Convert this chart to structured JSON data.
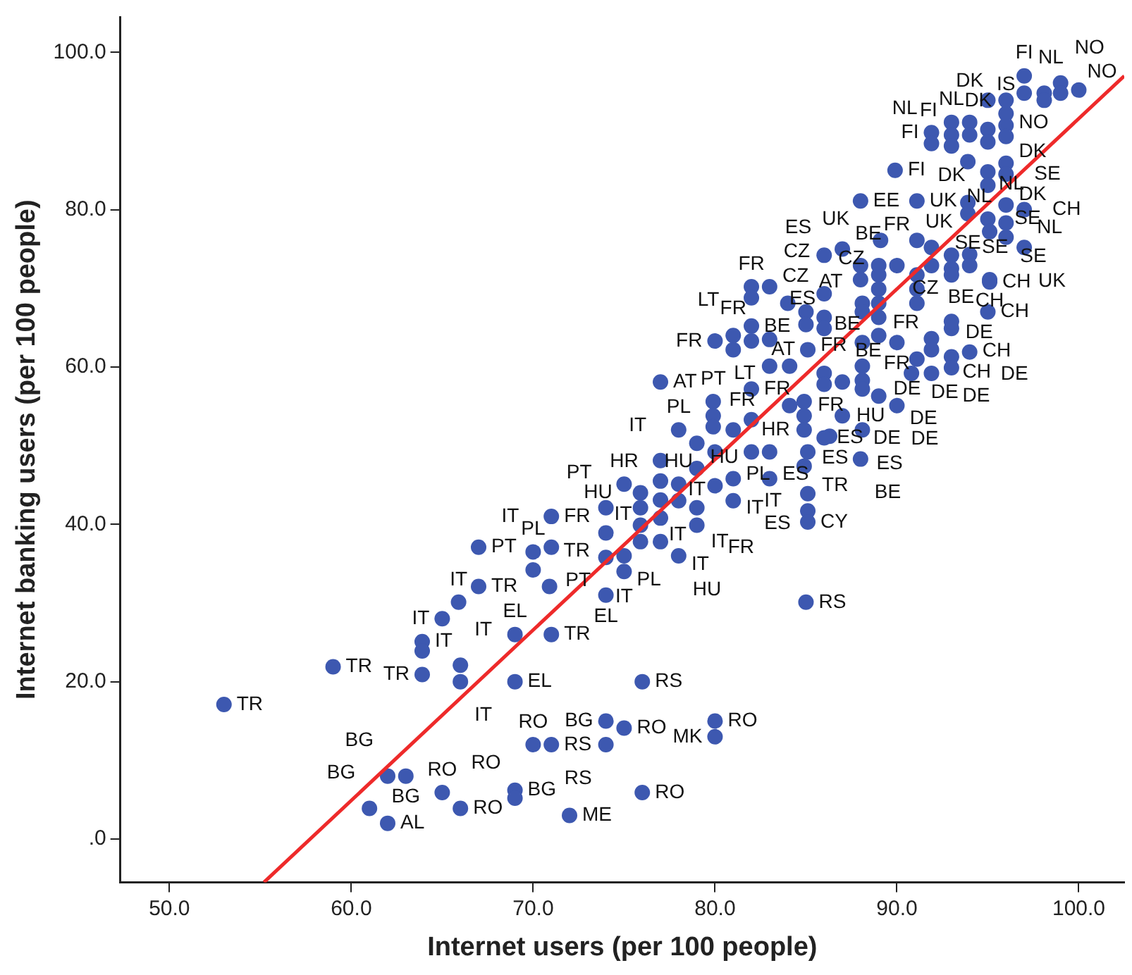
{
  "chart_data": {
    "type": "scatter",
    "xlabel": "Internet users (per 100 people)",
    "ylabel": "Internet banking users (per 100 people)",
    "xlim": [
      47.3,
      102.5
    ],
    "ylim": [
      -5.5,
      104.5
    ],
    "xticks": [
      {
        "value": 50,
        "label": "50.0"
      },
      {
        "value": 60,
        "label": "60.0"
      },
      {
        "value": 70,
        "label": "70.0"
      },
      {
        "value": 80,
        "label": "80.0"
      },
      {
        "value": 90,
        "label": "90.0"
      },
      {
        "value": 100,
        "label": "100.0"
      }
    ],
    "yticks": [
      {
        "value": 0,
        "label": ".0"
      },
      {
        "value": 20,
        "label": "20.0"
      },
      {
        "value": 40,
        "label": "40.0"
      },
      {
        "value": 60,
        "label": "60.0"
      },
      {
        "value": 80,
        "label": "80.0"
      },
      {
        "value": 100,
        "label": "100.0"
      }
    ],
    "grid": false,
    "legend": false,
    "marker": "circle",
    "series": [
      {
        "type": "scatter",
        "color": "#3d58b0",
        "x": [
          53.0,
          59.0,
          63.9,
          63.9,
          63.9,
          66.0,
          66.0,
          69.0,
          69.0,
          71.0,
          62.0,
          63.0,
          61.0,
          62.0,
          65.0,
          66.0,
          69.0,
          69.0,
          72.0,
          70.0,
          71.0,
          74.0,
          75.0,
          74.0,
          76.0,
          76.0,
          80.0,
          80.0,
          85.0,
          67.0,
          67.0,
          65.9,
          65.0,
          70.9,
          70.0,
          70.0,
          71.0,
          71.0,
          74.0,
          74.0,
          74.0,
          74.0,
          75.0,
          75.0,
          75.0,
          75.9,
          75.9,
          75.9,
          75.9,
          77.0,
          77.0,
          77.0,
          77.0,
          77.0,
          78.0,
          78.0,
          78.0,
          77.0,
          78.0,
          79.0,
          79.0,
          79.0,
          79.0,
          80.0,
          80.0,
          79.9,
          79.9,
          79.9,
          81.0,
          81.0,
          81.0,
          82.0,
          82.0,
          82.0,
          83.0,
          83.0,
          84.1,
          80.0,
          81.0,
          81.0,
          82.0,
          82.0,
          83.0,
          83.0,
          84.1,
          82.0,
          82.0,
          83.0,
          84.0,
          85.0,
          85.0,
          85.1,
          86.0,
          86.0,
          86.0,
          85.1,
          85.1,
          85.1,
          85.1,
          86.3,
          86.0,
          86.0,
          87.0,
          87.0,
          88.1,
          88.1,
          88.1,
          88.1,
          88.1,
          88.1,
          88.1,
          88.0,
          86.0,
          84.9,
          84.9,
          84.9,
          84.9,
          89.0,
          89.0,
          89.0,
          89.0,
          89.0,
          90.0,
          90.0,
          89.0,
          90.8,
          91.1,
          91.1,
          91.1,
          91.1,
          91.9,
          91.9,
          91.9,
          93.0,
          93.0,
          93.0,
          94.0,
          95.1,
          95.0,
          89.9,
          88.0,
          91.1,
          89.1,
          91.1,
          87.0,
          86.0,
          91.9,
          91.9,
          93.0,
          93.0,
          93.0,
          94.0,
          94.0,
          93.9,
          95.0,
          95.0,
          95.0,
          95.0,
          95.0,
          96.0,
          96.0,
          96.0,
          96.0,
          96.0,
          96.0,
          97.0,
          97.0,
          98.1,
          98.1,
          99.0,
          99.0,
          100.0,
          93.9,
          93.9,
          95.0,
          96.0,
          96.0,
          96.0,
          97.0,
          97.0,
          94.0,
          94.0,
          95.1,
          95.1,
          93.0,
          93.0,
          91.9,
          91.9,
          90.0,
          89.0,
          88.0,
          88.0,
          93.0,
          93.0
        ],
        "values": [
          17.1,
          21.9,
          20.9,
          25.1,
          23.9,
          22.1,
          20.0,
          26.0,
          20.0,
          26.0,
          8.0,
          8.0,
          3.9,
          2.0,
          5.9,
          3.9,
          6.2,
          5.2,
          3.0,
          12.0,
          12.0,
          15.0,
          14.1,
          12.0,
          20.0,
          5.9,
          15.0,
          13.0,
          30.1,
          37.1,
          32.1,
          30.1,
          28.0,
          32.1,
          36.5,
          34.2,
          41.0,
          37.1,
          42.1,
          38.9,
          35.8,
          31.0,
          45.1,
          36.0,
          34.0,
          44.0,
          42.1,
          39.9,
          37.8,
          48.1,
          45.5,
          43.1,
          40.8,
          37.8,
          45.1,
          43.0,
          36.0,
          58.1,
          52.0,
          50.3,
          47.1,
          42.1,
          39.9,
          49.2,
          44.9,
          55.6,
          53.8,
          52.4,
          52.0,
          45.8,
          43.0,
          57.2,
          53.3,
          49.2,
          49.2,
          45.8,
          55.1,
          63.3,
          64.0,
          62.2,
          65.2,
          63.3,
          63.5,
          60.1,
          60.1,
          70.2,
          68.8,
          70.2,
          68.1,
          67.0,
          65.4,
          62.2,
          69.3,
          66.3,
          64.9,
          49.2,
          43.9,
          41.7,
          40.3,
          51.2,
          59.2,
          57.8,
          58.1,
          53.8,
          68.1,
          67.0,
          63.1,
          60.1,
          58.3,
          57.2,
          52.0,
          48.3,
          51.0,
          55.6,
          53.8,
          52.0,
          47.4,
          71.7,
          69.9,
          68.1,
          66.3,
          64.0,
          63.1,
          55.1,
          56.3,
          59.2,
          61.0,
          71.7,
          69.9,
          68.1,
          63.6,
          62.2,
          59.2,
          64.9,
          61.3,
          59.9,
          61.9,
          70.8,
          67.0,
          85.0,
          81.1,
          81.1,
          76.1,
          76.1,
          75.0,
          74.2,
          89.8,
          88.4,
          91.1,
          89.5,
          88.1,
          91.1,
          89.5,
          86.1,
          93.9,
          90.2,
          88.6,
          84.8,
          83.1,
          93.9,
          92.2,
          90.7,
          89.3,
          85.9,
          84.5,
          97.0,
          94.8,
          94.8,
          93.9,
          96.1,
          94.8,
          95.2,
          80.9,
          79.5,
          78.8,
          80.6,
          78.3,
          76.5,
          80.0,
          75.2,
          74.3,
          72.9,
          77.2,
          71.1,
          74.2,
          72.5,
          75.2,
          72.9,
          72.9,
          72.9,
          72.9,
          71.1,
          71.7,
          65.8
        ],
        "value_labels": [
          "TR",
          "TR",
          "TR",
          "IT",
          null,
          "IT",
          "IT",
          "EL",
          "EL",
          "TR",
          "BG",
          "BG",
          "BG",
          "AL",
          "RO",
          "RO",
          "BG",
          "RO",
          "ME",
          "RO",
          "RS",
          "BG",
          "RO",
          "RS",
          "RS",
          "RO",
          "RO",
          "MK",
          "RS",
          "PT",
          "TR",
          "IT",
          "IT",
          "TR",
          "IT",
          "PL",
          "FR",
          "PT",
          "PT",
          "IT",
          "PL",
          "EL",
          "HR",
          "IT",
          null,
          "HU",
          null,
          null,
          null,
          "IT",
          null,
          null,
          "IT",
          "IT",
          "HU",
          null,
          "HU",
          "AT",
          "PL",
          null,
          "IT",
          "IT",
          "FR",
          "PL",
          "IT",
          "PT",
          null,
          null,
          "HR",
          "IT",
          "ES",
          "FR",
          null,
          "ES",
          null,
          "HU",
          "FR",
          "FR",
          "LT",
          "FR",
          "BE",
          null,
          "LT",
          "FR",
          "FR",
          "FR",
          "CZ",
          "CZ",
          "AT",
          null,
          "BE",
          "AT",
          "CZ",
          "ES",
          "BE",
          "TR",
          "ES",
          null,
          "CY",
          null,
          null,
          null,
          "HU",
          "DE",
          null,
          null,
          null,
          "DE",
          null,
          null,
          "ES",
          "BE",
          "ES",
          null,
          null,
          null,
          null,
          null,
          "FR",
          null,
          null,
          null,
          "FR",
          "DE",
          "DE",
          null,
          "DE",
          "BE",
          null,
          null,
          null,
          "CH",
          "DE",
          "CH",
          null,
          "DE",
          "DE",
          "CH",
          "CH",
          "FI",
          "EE",
          "UK",
          "UK",
          "UK",
          "ES",
          "BE",
          "FI",
          "NL",
          "NL",
          "DK",
          "FI",
          "DK",
          null,
          "NL",
          "NO",
          "DK",
          null,
          "DK",
          null,
          null,
          null,
          "IS",
          "DK",
          "NL",
          "SE",
          "FI",
          "NL",
          null,
          null,
          "NO",
          null,
          "NO",
          "SE",
          "SE",
          null,
          "NL",
          "SE",
          "SE",
          "CH",
          "UK",
          null,
          "CZ",
          null,
          "CH",
          null,
          null,
          null,
          null,
          "FR",
          null,
          null,
          null,
          null,
          null
        ]
      },
      {
        "type": "line",
        "color": "#ee2a2a",
        "marker": "none",
        "x": [
          55.2,
          102.5
        ],
        "values": [
          -5.5,
          97.0
        ]
      }
    ]
  }
}
